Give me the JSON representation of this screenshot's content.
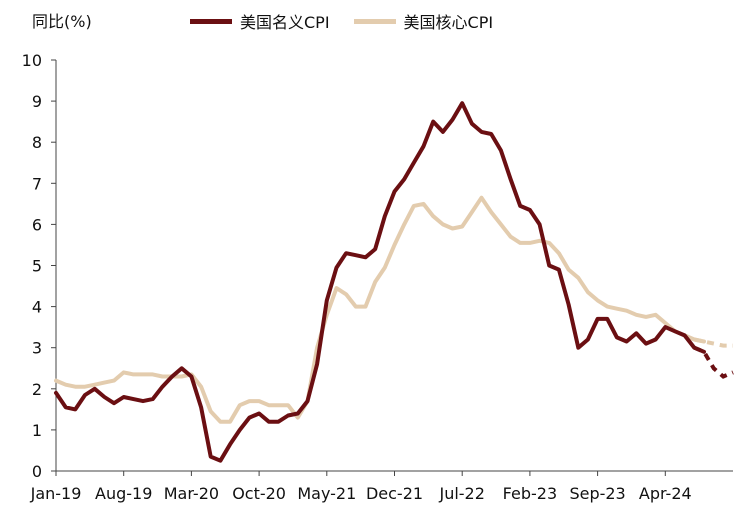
{
  "chart_data": {
    "type": "line",
    "ylabel": "同比(%)",
    "ylim": [
      0,
      10
    ],
    "yticks": [
      0,
      1,
      2,
      3,
      4,
      5,
      6,
      7,
      8,
      9,
      10
    ],
    "xtick_labels": [
      "Jan-19",
      "Aug-19",
      "Mar-20",
      "Oct-20",
      "May-21",
      "Dec-21",
      "Jul-22",
      "Feb-23",
      "Sep-23",
      "Apr-24"
    ],
    "xtick_index": [
      0,
      7,
      14,
      21,
      28,
      35,
      42,
      49,
      56,
      63
    ],
    "n_periods": 68,
    "grid": false,
    "legend_position": "top",
    "series": [
      {
        "name": "美国名义CPI",
        "color": "#6b0f12",
        "values": [
          1.9,
          1.55,
          1.5,
          1.85,
          2.0,
          1.8,
          1.65,
          1.8,
          1.75,
          1.7,
          1.75,
          2.05,
          2.3,
          2.5,
          2.3,
          1.55,
          0.35,
          0.25,
          0.65,
          1.0,
          1.3,
          1.4,
          1.2,
          1.2,
          1.35,
          1.4,
          1.7,
          2.6,
          4.15,
          4.95,
          5.3,
          5.25,
          5.2,
          5.4,
          6.2,
          6.8,
          7.1,
          7.5,
          7.9,
          8.5,
          8.25,
          8.55,
          8.95,
          8.45,
          8.25,
          8.2,
          7.8,
          7.1,
          6.45,
          6.35,
          6.0,
          5.0,
          4.9,
          4.05,
          3.0,
          3.2,
          3.7,
          3.7,
          3.25,
          3.15,
          3.35,
          3.1,
          3.2,
          3.5,
          3.4,
          3.3,
          3.0,
          2.9
        ],
        "projected": [
          [
            66,
            3.0
          ],
          [
            67,
            2.9
          ],
          [
            68,
            2.5
          ],
          [
            69,
            2.3
          ],
          [
            70,
            2.4
          ]
        ]
      },
      {
        "name": "美国核心CPI",
        "color": "#e3ccae",
        "values": [
          2.2,
          2.1,
          2.05,
          2.05,
          2.1,
          2.15,
          2.2,
          2.4,
          2.35,
          2.35,
          2.35,
          2.3,
          2.3,
          2.3,
          2.35,
          2.05,
          1.45,
          1.2,
          1.2,
          1.6,
          1.7,
          1.7,
          1.6,
          1.6,
          1.6,
          1.3,
          1.7,
          3.0,
          3.8,
          4.45,
          4.3,
          4.0,
          4.0,
          4.6,
          4.95,
          5.5,
          6.0,
          6.45,
          6.5,
          6.2,
          6.0,
          5.9,
          5.95,
          6.3,
          6.65,
          6.3,
          6.0,
          5.7,
          5.55,
          5.55,
          5.6,
          5.55,
          5.3,
          4.9,
          4.7,
          4.35,
          4.15,
          4.0,
          3.95,
          3.9,
          3.8,
          3.75,
          3.8,
          3.6,
          3.4,
          3.3,
          3.2,
          3.15
        ],
        "projected": [
          [
            66,
            3.2
          ],
          [
            67,
            3.15
          ],
          [
            68,
            3.1
          ],
          [
            69,
            3.05
          ],
          [
            70,
            3.05
          ]
        ]
      }
    ]
  }
}
